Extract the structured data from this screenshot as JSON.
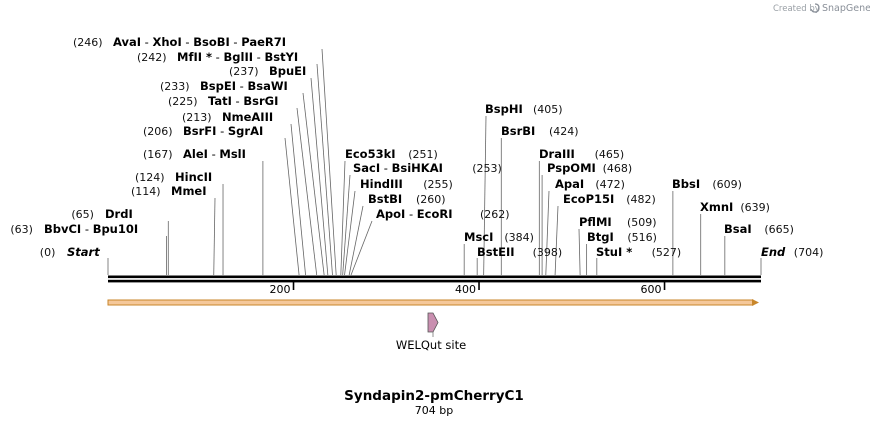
{
  "header": {
    "created_by": "Created by",
    "brand": "SnapGene"
  },
  "sequence": {
    "name": "Syndapin2-pmCherryC1",
    "length_label": "704 bp",
    "length": 704
  },
  "ruler": {
    "ticks": [
      {
        "value": 200,
        "label": "200"
      },
      {
        "value": 400,
        "label": "400"
      },
      {
        "value": 600,
        "label": "600"
      }
    ]
  },
  "feature": {
    "name": "WELQut site",
    "position": 353,
    "direction": "forward",
    "color": "#c98fb0"
  },
  "colors": {
    "backbone": "#000000",
    "orf_fill": "#f5c89a",
    "orf_stroke": "#c8862a",
    "line": "#555555",
    "credit": "#9aa0a6"
  },
  "sites": [
    {
      "pos": 0,
      "pos_label": "(0)",
      "parts": [
        "Start"
      ],
      "sep": [],
      "end_marker": true
    },
    {
      "pos": 63,
      "pos_label": "(63)",
      "parts": [
        "BbvCI",
        "Bpu10I"
      ],
      "sep": [
        "- "
      ]
    },
    {
      "pos": 65,
      "pos_label": "(65)",
      "parts": [
        "DrdI"
      ],
      "sep": []
    },
    {
      "pos": 114,
      "pos_label": "(114)",
      "parts": [
        "MmeI"
      ],
      "sep": []
    },
    {
      "pos": 124,
      "pos_label": "(124)",
      "parts": [
        "HincII"
      ],
      "sep": []
    },
    {
      "pos": 167,
      "pos_label": "(167)",
      "parts": [
        "AleI",
        "MslI"
      ],
      "sep": [
        "- "
      ]
    },
    {
      "pos": 206,
      "pos_label": "(206)",
      "parts": [
        "BsrFI",
        "SgrAI"
      ],
      "sep": [
        "- "
      ]
    },
    {
      "pos": 213,
      "pos_label": "(213)",
      "parts": [
        "NmeAIII"
      ],
      "sep": []
    },
    {
      "pos": 225,
      "pos_label": "(225)",
      "parts": [
        "TatI",
        "BsrGI"
      ],
      "sep": [
        "- "
      ]
    },
    {
      "pos": 233,
      "pos_label": "(233)",
      "parts": [
        "BspEI",
        "BsaWI"
      ],
      "sep": [
        "- "
      ]
    },
    {
      "pos": 237,
      "pos_label": "(237)",
      "parts": [
        "BpuEI"
      ],
      "sep": []
    },
    {
      "pos": 242,
      "pos_label": "(242)",
      "parts": [
        "MfII *",
        "BglII",
        "BstYI"
      ],
      "sep": [
        "- ",
        "- "
      ]
    },
    {
      "pos": 246,
      "pos_label": "(246)",
      "parts": [
        "AvaI",
        "XhoI",
        "BsoBI",
        "PaeR7I"
      ],
      "sep": [
        "- ",
        "- ",
        "- "
      ]
    },
    {
      "pos": 251,
      "pos_label": "(251)",
      "parts": [
        "Eco53kI"
      ],
      "sep": []
    },
    {
      "pos": 253,
      "pos_label": "(253)",
      "parts": [
        "SacI",
        "BsiHKAI"
      ],
      "sep": [
        "- "
      ]
    },
    {
      "pos": 255,
      "pos_label": "(255)",
      "parts": [
        "HindIII"
      ],
      "sep": []
    },
    {
      "pos": 260,
      "pos_label": "(260)",
      "parts": [
        "BstBI"
      ],
      "sep": []
    },
    {
      "pos": 262,
      "pos_label": "(262)",
      "parts": [
        "ApoI",
        "EcoRI"
      ],
      "sep": [
        "- "
      ]
    },
    {
      "pos": 384,
      "pos_label": "(384)",
      "parts": [
        "MscI"
      ],
      "sep": []
    },
    {
      "pos": 398,
      "pos_label": "(398)",
      "parts": [
        "BstEII"
      ],
      "sep": []
    },
    {
      "pos": 405,
      "pos_label": "(405)",
      "parts": [
        "BspHI"
      ],
      "sep": []
    },
    {
      "pos": 424,
      "pos_label": "(424)",
      "parts": [
        "BsrBI"
      ],
      "sep": []
    },
    {
      "pos": 465,
      "pos_label": "(465)",
      "parts": [
        "DraIII"
      ],
      "sep": []
    },
    {
      "pos": 468,
      "pos_label": "(468)",
      "parts": [
        "PspOMI"
      ],
      "sep": []
    },
    {
      "pos": 472,
      "pos_label": "(472)",
      "parts": [
        "ApaI"
      ],
      "sep": []
    },
    {
      "pos": 482,
      "pos_label": "(482)",
      "parts": [
        "EcoP15I"
      ],
      "sep": []
    },
    {
      "pos": 509,
      "pos_label": "(509)",
      "parts": [
        "PflMI"
      ],
      "sep": []
    },
    {
      "pos": 516,
      "pos_label": "(516)",
      "parts": [
        "BtgI"
      ],
      "sep": []
    },
    {
      "pos": 527,
      "pos_label": "(527)",
      "parts": [
        "StuI *"
      ],
      "sep": []
    },
    {
      "pos": 609,
      "pos_label": "(609)",
      "parts": [
        "BbsI"
      ],
      "sep": []
    },
    {
      "pos": 639,
      "pos_label": "(639)",
      "parts": [
        "XmnI"
      ],
      "sep": []
    },
    {
      "pos": 665,
      "pos_label": "(665)",
      "parts": [
        "BsaI"
      ],
      "sep": []
    },
    {
      "pos": 704,
      "pos_label": "(704)",
      "parts": [
        "End"
      ],
      "sep": [],
      "end_marker": true
    }
  ]
}
